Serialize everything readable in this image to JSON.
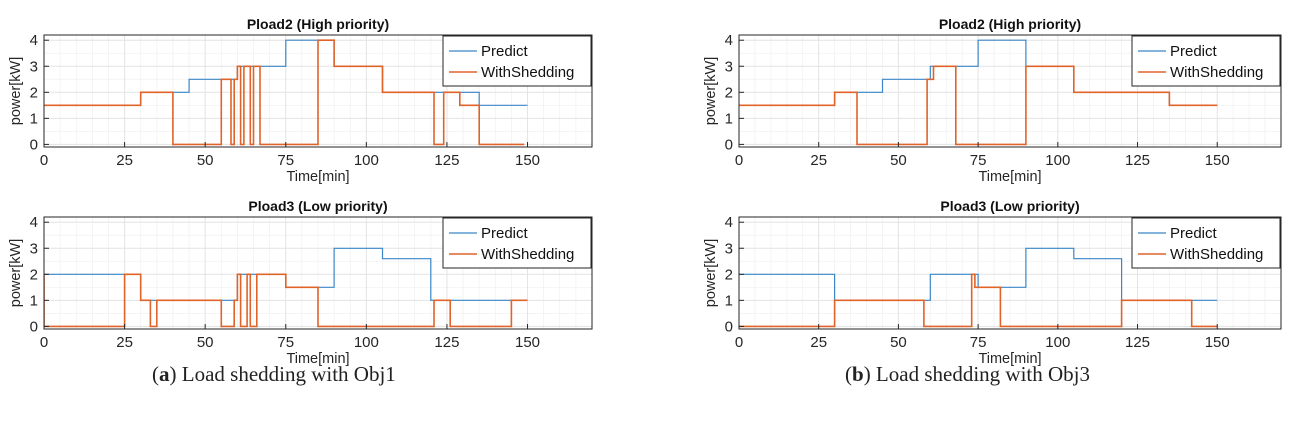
{
  "captions": [
    {
      "label": "a",
      "text": ") Load shedding with Obj1"
    },
    {
      "label": "b",
      "text": ") Load shedding with Obj3"
    }
  ],
  "colors": {
    "predict": "#3a86c8",
    "shed": "#e0632a",
    "grid": "#e3e3e3",
    "axis": "#262626"
  },
  "chart_data": [
    {
      "type": "line",
      "panel": "a-top",
      "title": "Pload2 (High priority)",
      "xlabel": "Time[min]",
      "ylabel": "power[kW]",
      "xlim": [
        0,
        170
      ],
      "ylim": [
        -0.1,
        4.2
      ],
      "xticks": [
        0,
        25,
        50,
        75,
        100,
        125,
        150
      ],
      "yticks": [
        0,
        1,
        2,
        3,
        4
      ],
      "grid": true,
      "legend": "top-right",
      "series": [
        {
          "name": "Predict",
          "x": [
            0,
            30,
            30,
            45,
            45,
            60,
            60,
            75,
            75,
            90,
            90,
            105,
            105,
            120,
            120,
            135,
            135,
            150
          ],
          "y": [
            1.5,
            1.5,
            2,
            2,
            2.5,
            2.5,
            3,
            3,
            4,
            4,
            3,
            3,
            2,
            2,
            2,
            2,
            1.5,
            1.5
          ]
        },
        {
          "name": "WithShedding",
          "x": [
            0,
            30,
            30,
            40,
            40,
            55,
            55,
            58,
            58,
            59,
            59,
            60,
            60,
            61,
            61,
            62,
            62,
            64,
            64,
            65,
            65,
            67,
            67,
            85,
            85,
            90,
            90,
            105,
            105,
            120,
            120,
            121,
            121,
            124,
            124,
            125,
            125,
            129,
            129,
            135,
            135,
            145,
            145,
            149
          ],
          "y": [
            1.5,
            1.5,
            2,
            2,
            0,
            0,
            2.5,
            2.5,
            0,
            0,
            2.5,
            2.5,
            3,
            3,
            0,
            0,
            3,
            3,
            0,
            0,
            3,
            3,
            0,
            0,
            4,
            4,
            3,
            3,
            2,
            2,
            2,
            2,
            0,
            0,
            2,
            2,
            2,
            2,
            1.5,
            1.5,
            0,
            0,
            0,
            0
          ]
        }
      ]
    },
    {
      "type": "line",
      "panel": "a-bottom",
      "title": "Pload3 (Low priority)",
      "xlabel": "Time[min]",
      "ylabel": "power[kW]",
      "xlim": [
        0,
        170
      ],
      "ylim": [
        -0.1,
        4.2
      ],
      "xticks": [
        0,
        25,
        50,
        75,
        100,
        125,
        150
      ],
      "yticks": [
        0,
        1,
        2,
        3,
        4
      ],
      "grid": true,
      "legend": "top-right",
      "series": [
        {
          "name": "Predict",
          "x": [
            0,
            30,
            30,
            35,
            35,
            60,
            60,
            75,
            75,
            90,
            90,
            105,
            105,
            120,
            120,
            150
          ],
          "y": [
            2,
            2,
            1,
            1,
            1,
            1,
            2,
            2,
            1.5,
            1.5,
            3,
            3,
            2.6,
            2.6,
            1,
            1
          ]
        },
        {
          "name": "WithShedding",
          "x": [
            0,
            0,
            0,
            25,
            25,
            30,
            30,
            33,
            33,
            35,
            35,
            40,
            40,
            55,
            55,
            59,
            59,
            60,
            60,
            61,
            61,
            63,
            63,
            64,
            64,
            66,
            66,
            68,
            68,
            75,
            75,
            85,
            85,
            121,
            121,
            126,
            126,
            128,
            128,
            145,
            145,
            150
          ],
          "y": [
            2,
            2,
            0,
            0,
            2,
            2,
            1,
            1,
            0,
            0,
            1,
            1,
            1,
            1,
            0,
            0,
            1,
            1,
            2,
            2,
            0,
            0,
            2,
            2,
            0,
            0,
            2,
            2,
            2,
            2,
            1.5,
            1.5,
            0,
            0,
            1,
            1,
            0,
            0,
            0,
            0,
            1,
            1
          ]
        }
      ]
    },
    {
      "type": "line",
      "panel": "b-top",
      "title": "Pload2 (High priority)",
      "xlabel": "Time[min]",
      "ylabel": "power[kW]",
      "xlim": [
        0,
        170
      ],
      "ylim": [
        -0.1,
        4.2
      ],
      "xticks": [
        0,
        25,
        50,
        75,
        100,
        125,
        150
      ],
      "yticks": [
        0,
        1,
        2,
        3,
        4
      ],
      "grid": true,
      "legend": "top-right",
      "series": [
        {
          "name": "Predict",
          "x": [
            0,
            30,
            30,
            45,
            45,
            60,
            60,
            75,
            75,
            90,
            90,
            105,
            105,
            120,
            120,
            135,
            135,
            150
          ],
          "y": [
            1.5,
            1.5,
            2,
            2,
            2.5,
            2.5,
            3,
            3,
            4,
            4,
            3,
            3,
            2,
            2,
            2,
            2,
            1.5,
            1.5
          ]
        },
        {
          "name": "WithShedding",
          "x": [
            0,
            30,
            30,
            37,
            37,
            59,
            59,
            61,
            61,
            68,
            68,
            90,
            90,
            105,
            105,
            120,
            120,
            135,
            135,
            150
          ],
          "y": [
            1.5,
            1.5,
            2,
            2,
            0,
            0,
            2.5,
            2.5,
            3,
            3,
            0,
            0,
            3,
            3,
            2,
            2,
            2,
            2,
            1.5,
            1.5
          ]
        }
      ]
    },
    {
      "type": "line",
      "panel": "b-bottom",
      "title": "Pload3 (Low priority)",
      "xlabel": "Time[min]",
      "ylabel": "power[kW]",
      "xlim": [
        0,
        170
      ],
      "ylim": [
        -0.1,
        4.2
      ],
      "xticks": [
        0,
        25,
        50,
        75,
        100,
        125,
        150
      ],
      "yticks": [
        0,
        1,
        2,
        3,
        4
      ],
      "grid": true,
      "legend": "top-right",
      "series": [
        {
          "name": "Predict",
          "x": [
            0,
            30,
            30,
            60,
            60,
            75,
            75,
            90,
            90,
            105,
            105,
            120,
            120,
            150
          ],
          "y": [
            2,
            2,
            1,
            1,
            2,
            2,
            1.5,
            1.5,
            3,
            3,
            2.6,
            2.6,
            1,
            1
          ]
        },
        {
          "name": "WithShedding",
          "x": [
            0,
            30,
            30,
            58,
            58,
            73,
            73,
            74,
            74,
            75,
            75,
            82,
            82,
            120,
            120,
            142,
            142,
            150
          ],
          "y": [
            0,
            0,
            1,
            1,
            0,
            0,
            2,
            2,
            1.5,
            1.5,
            1.5,
            1.5,
            0,
            0,
            1,
            1,
            0,
            0
          ]
        }
      ]
    }
  ]
}
